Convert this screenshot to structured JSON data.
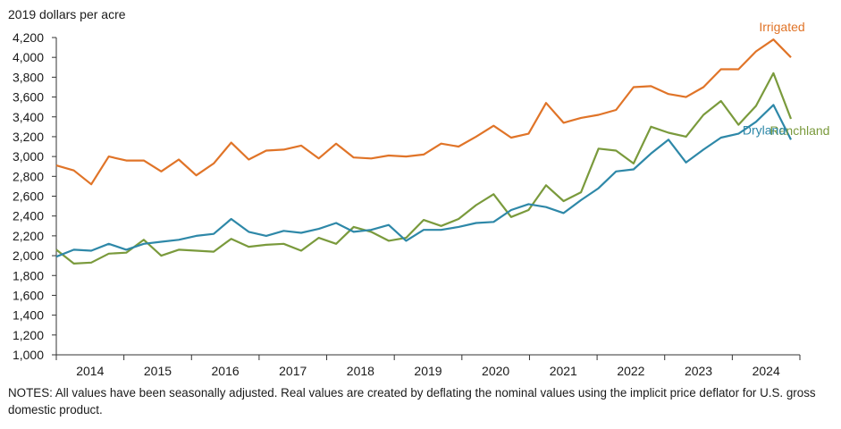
{
  "chart_data": {
    "type": "line",
    "ylabel": "2019 dollars per acre",
    "ylim": [
      1000,
      4200
    ],
    "ytick_step": 200,
    "x_start": 2013.5,
    "x_end": 2024.5,
    "x_tick_labels": [
      "2014",
      "2015",
      "2016",
      "2017",
      "2018",
      "2019",
      "2020",
      "2021",
      "2022",
      "2023",
      "2024"
    ],
    "grid": false,
    "series": [
      {
        "name": "Irrigated",
        "color": "#e07428",
        "values": [
          2910,
          2860,
          2720,
          3000,
          2960,
          2960,
          2850,
          2970,
          2810,
          2930,
          3140,
          2970,
          3060,
          3070,
          3110,
          2980,
          3130,
          2990,
          2980,
          3010,
          3000,
          3020,
          3130,
          3100,
          3200,
          3310,
          3190,
          3230,
          3540,
          3340,
          3390,
          3420,
          3470,
          3700,
          3710,
          3630,
          3600,
          3700,
          3880,
          3880,
          4060,
          4180,
          4000
        ]
      },
      {
        "name": "Ranchland",
        "color": "#7a9a3c",
        "values": [
          2060,
          1920,
          1930,
          2020,
          2030,
          2160,
          2000,
          2060,
          2050,
          2040,
          2170,
          2090,
          2110,
          2120,
          2050,
          2180,
          2120,
          2290,
          2240,
          2150,
          2180,
          2360,
          2300,
          2370,
          2510,
          2620,
          2390,
          2460,
          2710,
          2550,
          2640,
          3080,
          3060,
          2930,
          3300,
          3240,
          3200,
          3420,
          3560,
          3320,
          3510,
          3840,
          3380
        ]
      },
      {
        "name": "Dryland",
        "color": "#2e88a8",
        "values": [
          1990,
          2060,
          2050,
          2120,
          2060,
          2120,
          2140,
          2160,
          2200,
          2220,
          2370,
          2240,
          2200,
          2250,
          2230,
          2270,
          2330,
          2240,
          2260,
          2310,
          2150,
          2260,
          2260,
          2290,
          2330,
          2340,
          2460,
          2520,
          2490,
          2430,
          2560,
          2680,
          2850,
          2870,
          3030,
          3170,
          2940,
          3070,
          3190,
          3230,
          3350,
          3520,
          3170
        ]
      }
    ]
  },
  "notes": "NOTES: All values have been seasonally adjusted. Real values are created by deflating the nominal values using the implicit price deflator for U.S. gross domestic product."
}
